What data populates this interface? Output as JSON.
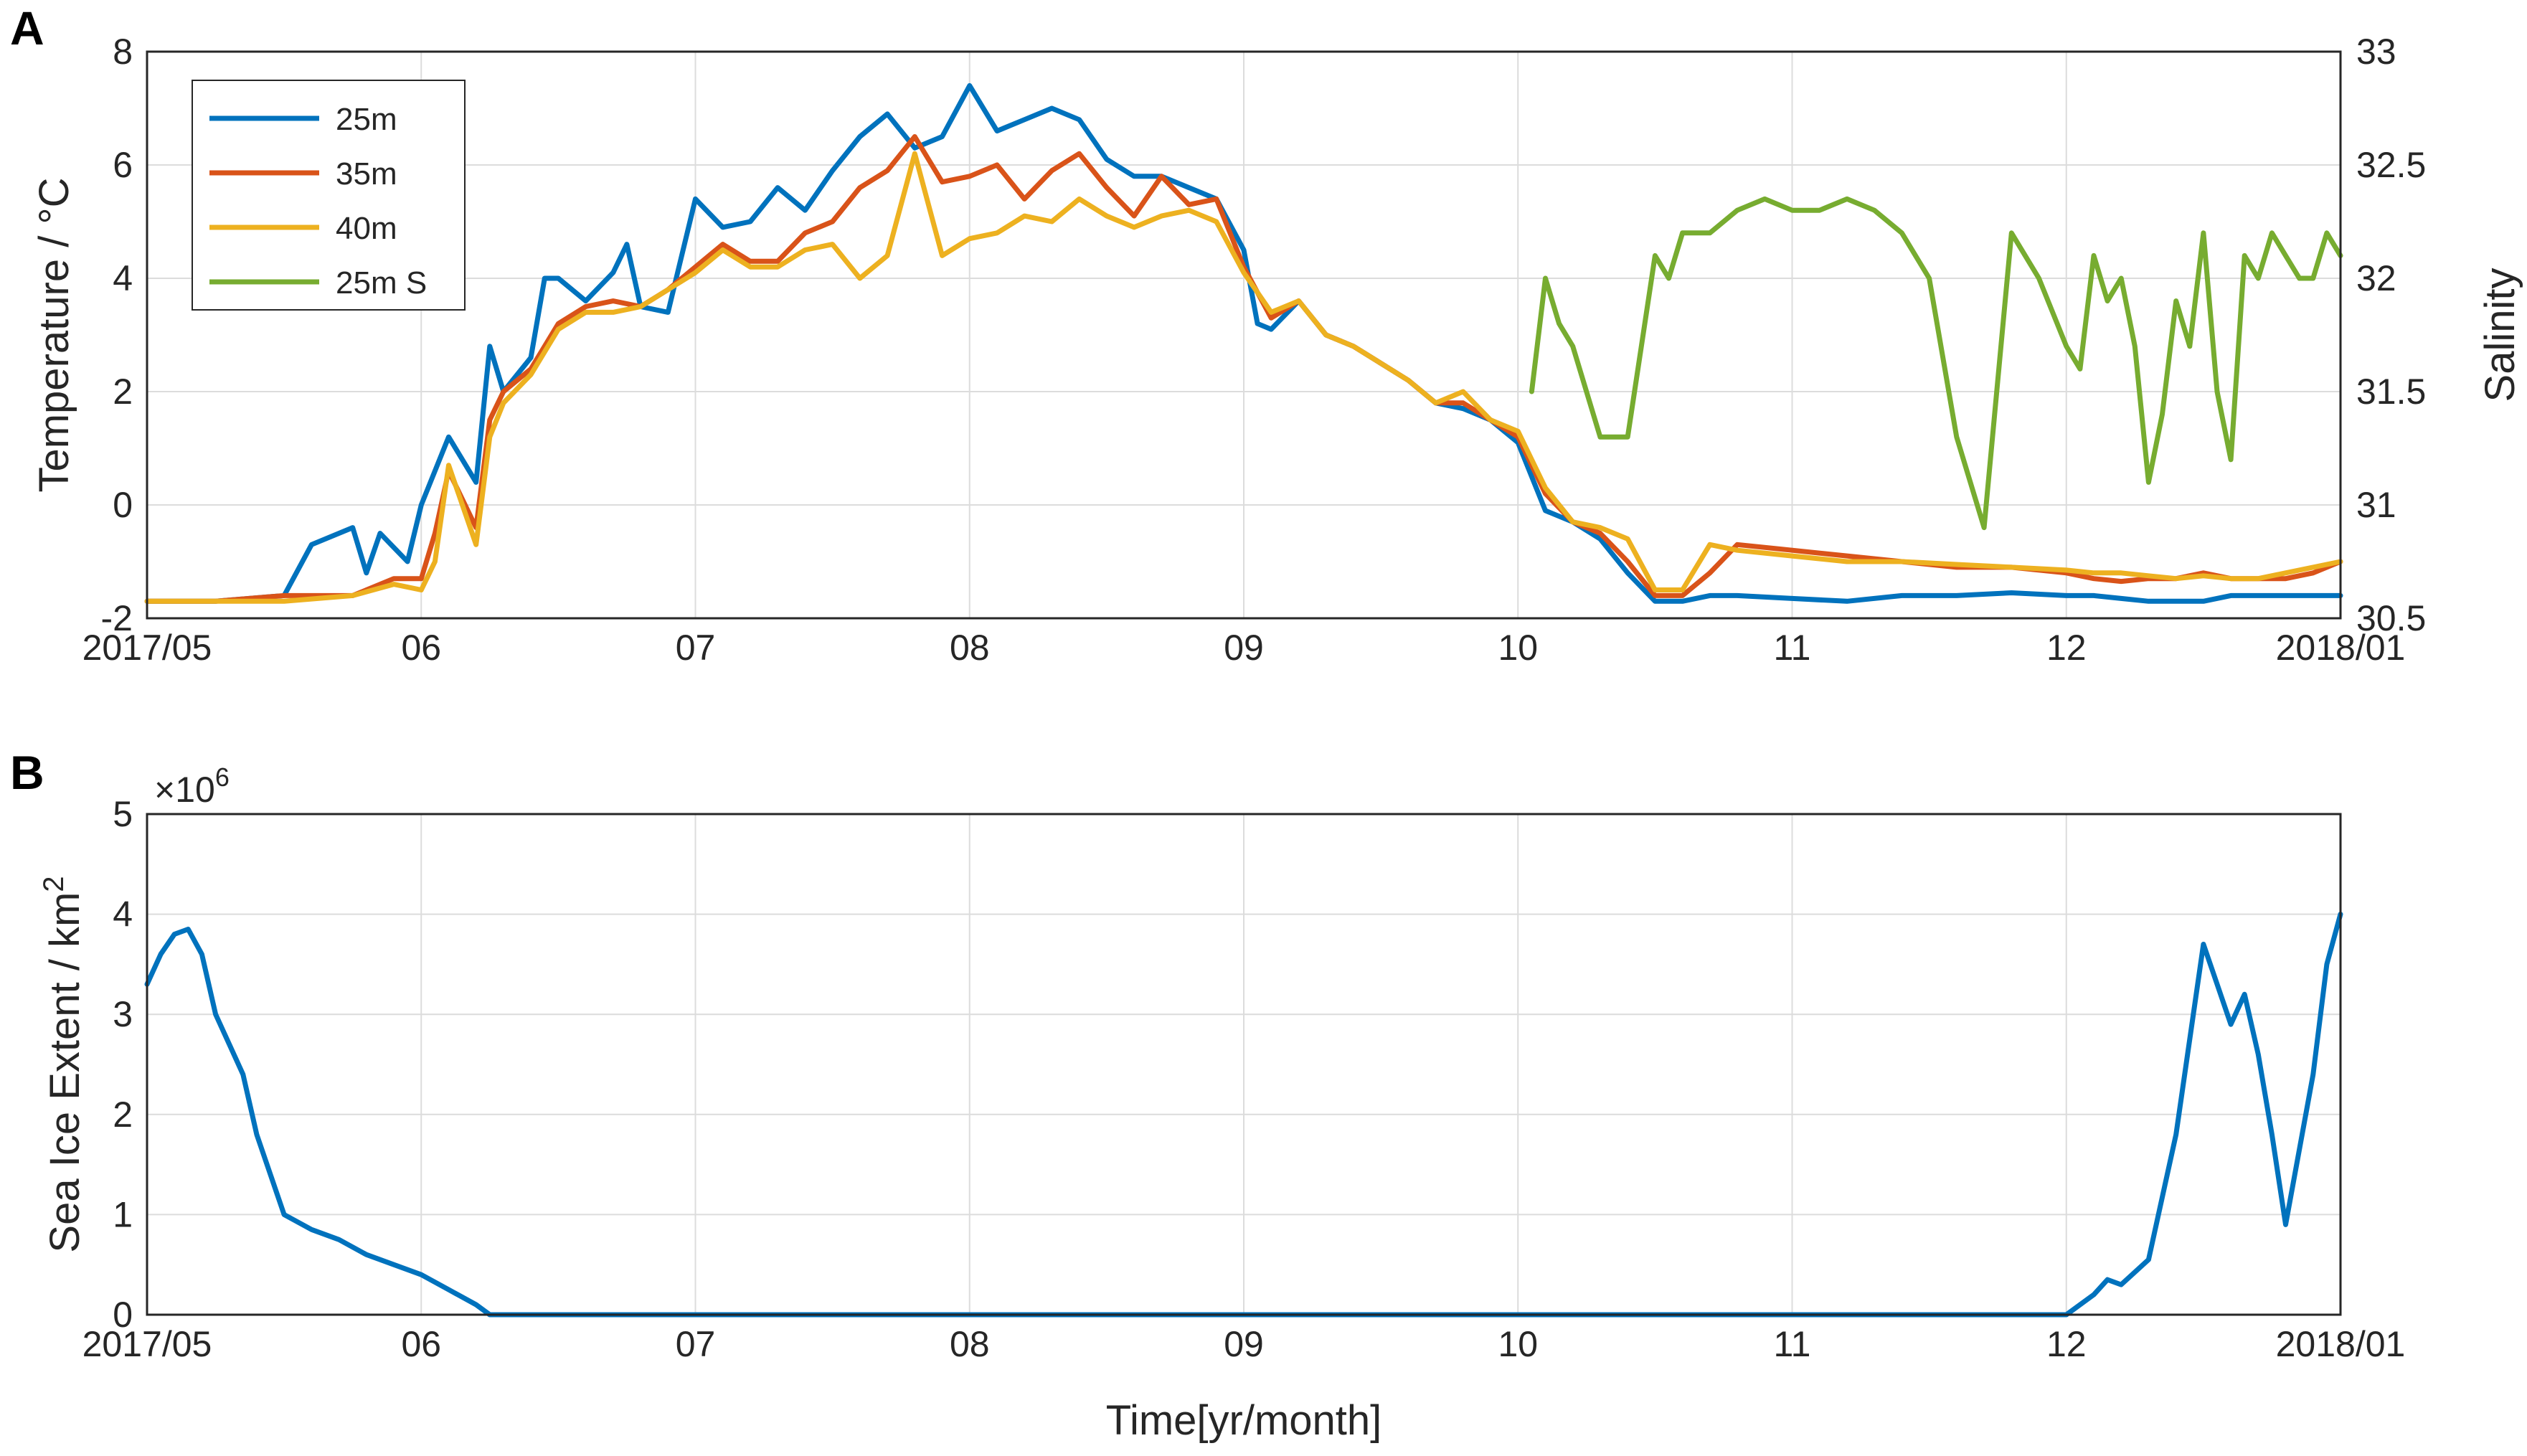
{
  "figure": {
    "panel_labels": [
      "A",
      "B"
    ],
    "xlabel": "Time[yr/month]"
  },
  "chart_data": [
    {
      "panel": "A",
      "type": "line",
      "x_ticks": [
        "2017/05",
        "06",
        "07",
        "08",
        "09",
        "10",
        "11",
        "12",
        "2018/01"
      ],
      "x_tick_months": [
        0,
        1,
        2,
        3,
        4,
        5,
        6,
        7,
        8
      ],
      "ylabel": "Temperature / °C",
      "ylim": [
        -2,
        8
      ],
      "y_ticks": [
        -2,
        0,
        2,
        4,
        6,
        8
      ],
      "y2label": "Salinity",
      "y2lim": [
        30.5,
        33
      ],
      "y2_ticks": [
        "30.5",
        "31",
        "31.5",
        "32",
        "32.5",
        "33"
      ],
      "grid": true,
      "legend_position": "top-left",
      "colors": {
        "25m": "#0072bd",
        "35m": "#d95319",
        "40m": "#edb120",
        "25m S": "#77ac30"
      },
      "series": [
        {
          "name": "25m",
          "axis": "left",
          "color": "#0072bd",
          "x": [
            0,
            0.25,
            0.5,
            0.6,
            0.75,
            0.8,
            0.85,
            0.95,
            1.0,
            1.1,
            1.2,
            1.25,
            1.3,
            1.4,
            1.45,
            1.5,
            1.6,
            1.7,
            1.75,
            1.8,
            1.9,
            2.0,
            2.1,
            2.2,
            2.3,
            2.4,
            2.5,
            2.6,
            2.7,
            2.8,
            2.9,
            3.0,
            3.1,
            3.2,
            3.3,
            3.4,
            3.5,
            3.6,
            3.7,
            3.8,
            3.9,
            4.0,
            4.05,
            4.1,
            4.2,
            4.3,
            4.4,
            4.5,
            4.6,
            4.7,
            4.8,
            4.9,
            5.0,
            5.1,
            5.2,
            5.3,
            5.4,
            5.5,
            5.6,
            5.7,
            5.8,
            6.0,
            6.2,
            6.4,
            6.6,
            6.8,
            7.0,
            7.1,
            7.2,
            7.3,
            7.4,
            7.5,
            7.6,
            7.7,
            7.8,
            7.9,
            8.0
          ],
          "values": [
            -1.7,
            -1.7,
            -1.6,
            -0.7,
            -0.4,
            -1.2,
            -0.5,
            -1.0,
            0.0,
            1.2,
            0.4,
            2.8,
            2.0,
            2.6,
            4.0,
            4.0,
            3.6,
            4.1,
            4.6,
            3.5,
            3.4,
            5.4,
            4.9,
            5.0,
            5.6,
            5.2,
            5.9,
            6.5,
            6.9,
            6.3,
            6.5,
            7.4,
            6.6,
            6.8,
            7.0,
            6.8,
            6.1,
            5.8,
            5.8,
            5.6,
            5.4,
            4.5,
            3.2,
            3.1,
            3.6,
            3.0,
            2.8,
            2.5,
            2.2,
            1.8,
            1.7,
            1.5,
            1.1,
            -0.1,
            -0.3,
            -0.6,
            -1.2,
            -1.7,
            -1.7,
            -1.6,
            -1.6,
            -1.65,
            -1.7,
            -1.6,
            -1.6,
            -1.55,
            -1.6,
            -1.6,
            -1.65,
            -1.7,
            -1.7,
            -1.7,
            -1.6,
            -1.6,
            -1.6,
            -1.6,
            -1.6
          ]
        },
        {
          "name": "35m",
          "axis": "left",
          "color": "#d95319",
          "x": [
            0,
            0.25,
            0.5,
            0.75,
            0.8,
            0.9,
            1.0,
            1.05,
            1.1,
            1.2,
            1.25,
            1.3,
            1.4,
            1.5,
            1.6,
            1.7,
            1.8,
            1.9,
            2.0,
            2.1,
            2.2,
            2.3,
            2.4,
            2.5,
            2.6,
            2.7,
            2.8,
            2.9,
            3.0,
            3.1,
            3.2,
            3.3,
            3.4,
            3.5,
            3.6,
            3.7,
            3.8,
            3.9,
            4.0,
            4.1,
            4.2,
            4.3,
            4.4,
            4.5,
            4.6,
            4.7,
            4.8,
            4.9,
            5.0,
            5.1,
            5.2,
            5.3,
            5.4,
            5.5,
            5.6,
            5.7,
            5.8,
            6.0,
            6.2,
            6.4,
            6.6,
            6.8,
            7.0,
            7.1,
            7.2,
            7.3,
            7.4,
            7.5,
            7.6,
            7.7,
            7.8,
            7.9,
            8.0
          ],
          "values": [
            -1.7,
            -1.7,
            -1.6,
            -1.6,
            -1.5,
            -1.3,
            -1.3,
            -0.5,
            0.6,
            -0.4,
            1.5,
            2.0,
            2.4,
            3.2,
            3.5,
            3.6,
            3.5,
            3.8,
            4.2,
            4.6,
            4.3,
            4.3,
            4.8,
            5.0,
            5.6,
            5.9,
            6.5,
            5.7,
            5.8,
            6.0,
            5.4,
            5.9,
            6.2,
            5.6,
            5.1,
            5.8,
            5.3,
            5.4,
            4.2,
            3.3,
            3.6,
            3.0,
            2.8,
            2.5,
            2.2,
            1.8,
            1.8,
            1.5,
            1.2,
            0.2,
            -0.3,
            -0.5,
            -1.0,
            -1.6,
            -1.6,
            -1.2,
            -0.7,
            -0.8,
            -0.9,
            -1.0,
            -1.1,
            -1.1,
            -1.2,
            -1.3,
            -1.35,
            -1.3,
            -1.3,
            -1.2,
            -1.3,
            -1.3,
            -1.3,
            -1.2,
            -1.0
          ]
        },
        {
          "name": "40m",
          "axis": "left",
          "color": "#edb120",
          "x": [
            0,
            0.25,
            0.5,
            0.75,
            0.9,
            1.0,
            1.05,
            1.1,
            1.2,
            1.25,
            1.3,
            1.4,
            1.5,
            1.6,
            1.7,
            1.8,
            1.9,
            2.0,
            2.1,
            2.2,
            2.3,
            2.4,
            2.5,
            2.6,
            2.7,
            2.8,
            2.9,
            3.0,
            3.1,
            3.2,
            3.3,
            3.4,
            3.5,
            3.6,
            3.7,
            3.8,
            3.9,
            4.0,
            4.1,
            4.2,
            4.3,
            4.4,
            4.5,
            4.6,
            4.7,
            4.8,
            4.9,
            5.0,
            5.1,
            5.2,
            5.3,
            5.4,
            5.5,
            5.6,
            5.7,
            5.8,
            6.0,
            6.2,
            6.4,
            6.6,
            6.8,
            7.0,
            7.1,
            7.2,
            7.3,
            7.4,
            7.5,
            7.6,
            7.7,
            7.8,
            7.9,
            8.0
          ],
          "values": [
            -1.7,
            -1.7,
            -1.7,
            -1.6,
            -1.4,
            -1.5,
            -1.0,
            0.7,
            -0.7,
            1.2,
            1.8,
            2.3,
            3.1,
            3.4,
            3.4,
            3.5,
            3.8,
            4.1,
            4.5,
            4.2,
            4.2,
            4.5,
            4.6,
            4.0,
            4.4,
            6.2,
            4.4,
            4.7,
            4.8,
            5.1,
            5.0,
            5.4,
            5.1,
            4.9,
            5.1,
            5.2,
            5.0,
            4.1,
            3.4,
            3.6,
            3.0,
            2.8,
            2.5,
            2.2,
            1.8,
            2.0,
            1.5,
            1.3,
            0.3,
            -0.3,
            -0.4,
            -0.6,
            -1.5,
            -1.5,
            -0.7,
            -0.8,
            -0.9,
            -1.0,
            -1.0,
            -1.05,
            -1.1,
            -1.15,
            -1.2,
            -1.2,
            -1.25,
            -1.3,
            -1.25,
            -1.3,
            -1.3,
            -1.2,
            -1.1,
            -1.0
          ]
        },
        {
          "name": "25m S",
          "axis": "right",
          "color": "#77ac30",
          "x": [
            5.05,
            5.1,
            5.15,
            5.2,
            5.3,
            5.4,
            5.5,
            5.55,
            5.6,
            5.7,
            5.8,
            5.9,
            6.0,
            6.1,
            6.2,
            6.3,
            6.4,
            6.5,
            6.6,
            6.7,
            6.8,
            6.9,
            7.0,
            7.05,
            7.1,
            7.15,
            7.2,
            7.25,
            7.3,
            7.35,
            7.4,
            7.45,
            7.5,
            7.55,
            7.6,
            7.65,
            7.7,
            7.75,
            7.8,
            7.85,
            7.9,
            7.95,
            8.0
          ],
          "values": [
            31.5,
            32.0,
            31.8,
            31.7,
            31.3,
            31.3,
            32.1,
            32.0,
            32.2,
            32.2,
            32.3,
            32.35,
            32.3,
            32.3,
            32.35,
            32.3,
            32.2,
            32.0,
            31.3,
            30.9,
            32.2,
            32.0,
            31.7,
            31.6,
            32.1,
            31.9,
            32.0,
            31.7,
            31.1,
            31.4,
            31.9,
            31.7,
            32.2,
            31.5,
            31.2,
            32.1,
            32.0,
            32.2,
            32.1,
            32.0,
            32.0,
            32.2,
            32.1
          ]
        }
      ]
    },
    {
      "panel": "B",
      "type": "line",
      "x_ticks": [
        "2017/05",
        "06",
        "07",
        "08",
        "09",
        "10",
        "11",
        "12",
        "2018/01"
      ],
      "x_tick_months": [
        0,
        1,
        2,
        3,
        4,
        5,
        6,
        7,
        8
      ],
      "ylabel": "Sea Ice Extent / km",
      "ylabel_superscript": "2",
      "y_multiplier": "×10",
      "y_multiplier_exponent": "6",
      "ylim": [
        0,
        5
      ],
      "y_ticks": [
        0,
        1,
        2,
        3,
        4,
        5
      ],
      "grid": true,
      "colors": {
        "line": "#0072bd"
      },
      "series": [
        {
          "color": "#0072bd",
          "x": [
            0,
            0.05,
            0.1,
            0.15,
            0.2,
            0.25,
            0.3,
            0.35,
            0.4,
            0.5,
            0.6,
            0.7,
            0.8,
            0.9,
            1.0,
            1.1,
            1.2,
            1.25,
            1.3,
            2.0,
            3.0,
            4.0,
            5.0,
            6.0,
            7.0,
            7.1,
            7.15,
            7.2,
            7.3,
            7.4,
            7.5,
            7.55,
            7.6,
            7.65,
            7.7,
            7.75,
            7.8,
            7.9,
            7.95,
            8.0
          ],
          "values": [
            3.3,
            3.6,
            3.8,
            3.85,
            3.6,
            3.0,
            2.7,
            2.4,
            1.8,
            1.0,
            0.85,
            0.75,
            0.6,
            0.5,
            0.4,
            0.25,
            0.1,
            0.0,
            0.0,
            0.0,
            0.0,
            0.0,
            0.0,
            0.0,
            0.0,
            0.2,
            0.35,
            0.3,
            0.55,
            1.8,
            3.7,
            3.3,
            2.9,
            3.2,
            2.6,
            1.8,
            0.9,
            2.4,
            3.5,
            4.0
          ]
        }
      ]
    }
  ]
}
